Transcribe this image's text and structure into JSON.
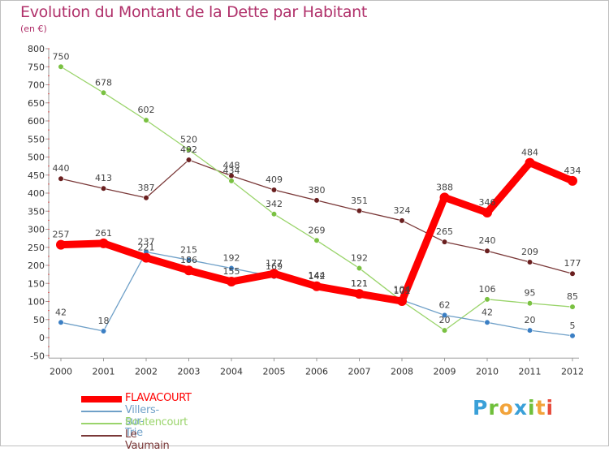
{
  "title": "Evolution du Montant de la Dette par Habitant",
  "unit": "(en €)",
  "logo": {
    "letters": [
      "P",
      "r",
      "o",
      "x",
      "i",
      "t",
      "i"
    ],
    "colors": [
      "#3aa0d8",
      "#6fbf3a",
      "#f2a33a",
      "#3aa0d8",
      "#6fbf3a",
      "#f2a33a",
      "#e74c3c"
    ]
  },
  "chart_data": {
    "type": "line",
    "x": [
      "2000",
      "2001",
      "2002",
      "2003",
      "2004",
      "2005",
      "2006",
      "2007",
      "2008",
      "2009",
      "2010",
      "2011",
      "2012"
    ],
    "ylim": [
      -50,
      800
    ],
    "yticks": [
      "-50",
      "0",
      "50",
      "100",
      "150",
      "200",
      "250",
      "300",
      "350",
      "400",
      "450",
      "500",
      "550",
      "600",
      "650",
      "700",
      "750",
      "800"
    ],
    "grid": false,
    "legend_position": "bottom-left",
    "series": [
      {
        "name": "FLAVACOURT",
        "color": "#ff0000",
        "marker": "#ff0000",
        "thick": true,
        "values": [
          257,
          261,
          221,
          186,
          155,
          177,
          142,
          121,
          101,
          388,
          346,
          484,
          434
        ],
        "labels": [
          "257",
          "261",
          "221",
          "186",
          "155",
          "177",
          "142",
          "121",
          "101",
          "388",
          "346",
          "484",
          "434"
        ]
      },
      {
        "name": "Villers-sur-Trie",
        "color": "#6fa0c8",
        "marker": "#3b7fc4",
        "thick": false,
        "values": [
          42,
          18,
          237,
          215,
          192,
          169,
          144,
          121,
          104,
          62,
          42,
          20,
          5
        ],
        "labels": [
          "42",
          "18",
          "237",
          "215",
          "192",
          "169",
          "144",
          "121",
          "104",
          "62",
          "42",
          "20",
          "5"
        ]
      },
      {
        "name": "Boutencourt",
        "color": "#9ad46b",
        "marker": "#7ac142",
        "thick": false,
        "values": [
          750,
          678,
          602,
          520,
          434,
          342,
          269,
          192,
          101,
          20,
          106,
          95,
          85
        ],
        "labels": [
          "750",
          "678",
          "602",
          "520",
          "434",
          "342",
          "269",
          "192",
          "",
          "20",
          "106",
          "95",
          "85"
        ]
      },
      {
        "name": "Le Vaumain",
        "color": "#7a3838",
        "marker": "#6a1f1f",
        "thick": false,
        "values": [
          440,
          413,
          387,
          492,
          448,
          409,
          380,
          351,
          324,
          265,
          240,
          209,
          177
        ],
        "labels": [
          "440",
          "413",
          "387",
          "492",
          "448",
          "409",
          "380",
          "351",
          "324",
          "265",
          "240",
          "209",
          "177"
        ]
      }
    ]
  }
}
